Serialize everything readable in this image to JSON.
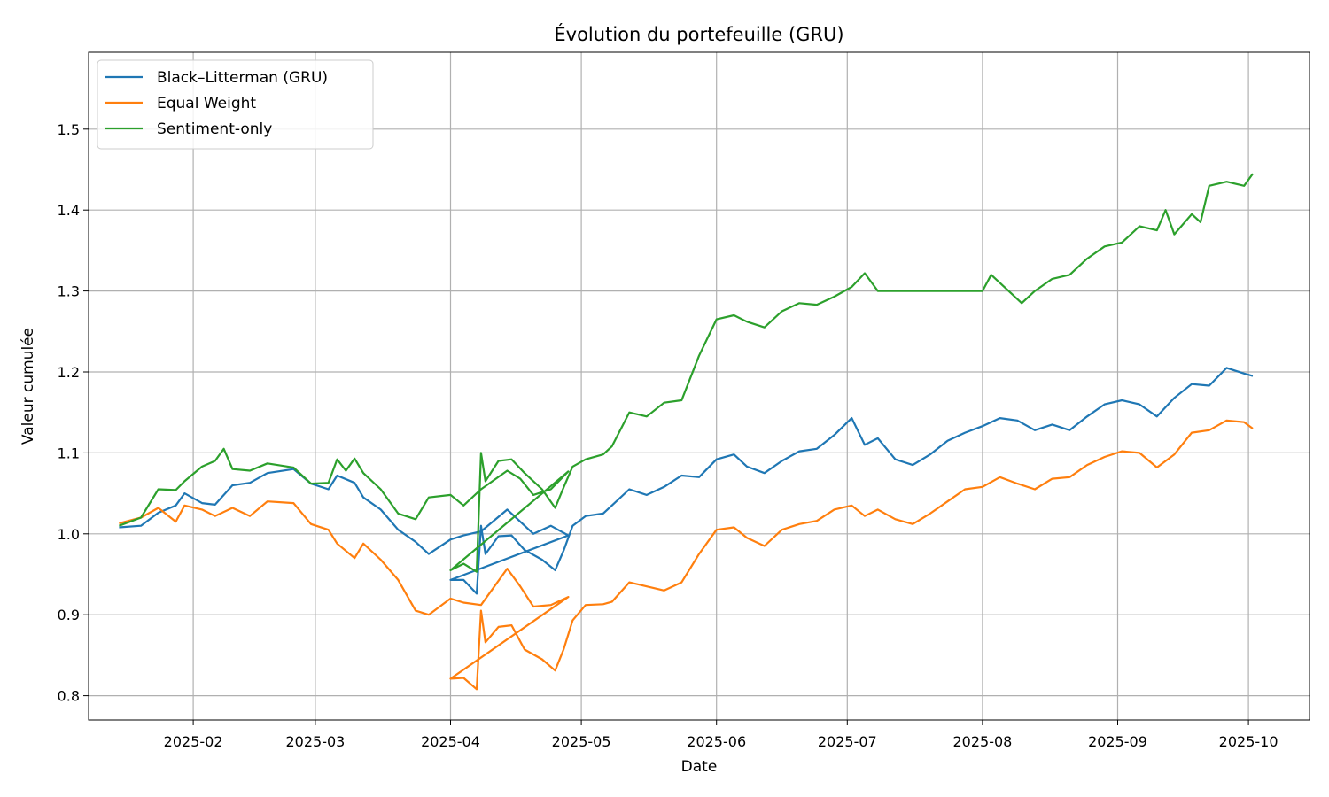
{
  "chart_data": {
    "type": "line",
    "title": "Évolution du portefeuille (GRU)",
    "xlabel": "Date",
    "ylabel": "Valeur cumulée",
    "xlim": [
      "2025-01-08",
      "2025-10-15"
    ],
    "ylim": [
      0.77,
      1.595
    ],
    "x_ticks": [
      "2025-02",
      "2025-03",
      "2025-04",
      "2025-05",
      "2025-06",
      "2025-07",
      "2025-08",
      "2025-09",
      "2025-10"
    ],
    "y_ticks": [
      "0.8",
      "0.9",
      "1.0",
      "1.1",
      "1.2",
      "1.3",
      "1.4",
      "1.5"
    ],
    "grid": true,
    "legend_position": "upper-left",
    "series": [
      {
        "name": "Black–Litterman (GRU)",
        "color": "#1f77b4",
        "points": [
          [
            "2025-01-15",
            1.008
          ],
          [
            "2025-01-20",
            1.01
          ],
          [
            "2025-01-24",
            1.026
          ],
          [
            "2025-01-28",
            1.035
          ],
          [
            "2025-01-30",
            1.05
          ],
          [
            "2025-02-03",
            1.038
          ],
          [
            "2025-02-06",
            1.036
          ],
          [
            "2025-02-10",
            1.06
          ],
          [
            "2025-02-14",
            1.063
          ],
          [
            "2025-02-18",
            1.075
          ],
          [
            "2025-02-24",
            1.08
          ],
          [
            "2025-02-28",
            1.062
          ],
          [
            "2025-03-04",
            1.055
          ],
          [
            "2025-03-06",
            1.072
          ],
          [
            "2025-03-10",
            1.063
          ],
          [
            "2025-03-12",
            1.045
          ],
          [
            "2025-03-16",
            1.03
          ],
          [
            "2025-03-20",
            1.005
          ],
          [
            "2025-03-24",
            0.99
          ],
          [
            "2025-03-27",
            0.975
          ],
          [
            "2025-04-01",
            0.993
          ],
          [
            "2025-04-04",
            0.998
          ],
          [
            "2025-04-08",
            1.003
          ],
          [
            "2025-04-14",
            1.03
          ],
          [
            "2025-04-17",
            1.015
          ],
          [
            "2025-04-20",
            1.0
          ],
          [
            "2025-04-24",
            1.01
          ],
          [
            "2025-04-28",
            0.998
          ],
          [
            "2025-04-01",
            0.943
          ],
          [
            "2025-04-04",
            0.943
          ],
          [
            "2025-04-07",
            0.926
          ],
          [
            "2025-04-08",
            1.01
          ],
          [
            "2025-04-09",
            0.975
          ],
          [
            "2025-04-12",
            0.997
          ],
          [
            "2025-04-15",
            0.998
          ],
          [
            "2025-04-18",
            0.98
          ],
          [
            "2025-04-22",
            0.968
          ],
          [
            "2025-04-25",
            0.955
          ],
          [
            "2025-04-27",
            0.98
          ],
          [
            "2025-04-29",
            1.01
          ],
          [
            "2025-05-02",
            1.022
          ],
          [
            "2025-05-06",
            1.025
          ],
          [
            "2025-05-08",
            1.035
          ],
          [
            "2025-05-12",
            1.055
          ],
          [
            "2025-05-16",
            1.048
          ],
          [
            "2025-05-20",
            1.058
          ],
          [
            "2025-05-24",
            1.072
          ],
          [
            "2025-05-28",
            1.07
          ],
          [
            "2025-06-01",
            1.092
          ],
          [
            "2025-06-05",
            1.098
          ],
          [
            "2025-06-08",
            1.083
          ],
          [
            "2025-06-12",
            1.075
          ],
          [
            "2025-06-16",
            1.09
          ],
          [
            "2025-06-20",
            1.102
          ],
          [
            "2025-06-24",
            1.105
          ],
          [
            "2025-06-28",
            1.122
          ],
          [
            "2025-07-02",
            1.143
          ],
          [
            "2025-07-05",
            1.11
          ],
          [
            "2025-07-08",
            1.118
          ],
          [
            "2025-07-12",
            1.092
          ],
          [
            "2025-07-16",
            1.085
          ],
          [
            "2025-07-20",
            1.098
          ],
          [
            "2025-07-24",
            1.115
          ],
          [
            "2025-07-28",
            1.125
          ],
          [
            "2025-08-01",
            1.133
          ],
          [
            "2025-08-05",
            1.143
          ],
          [
            "2025-08-09",
            1.14
          ],
          [
            "2025-08-13",
            1.128
          ],
          [
            "2025-08-17",
            1.135
          ],
          [
            "2025-08-21",
            1.128
          ],
          [
            "2025-08-25",
            1.145
          ],
          [
            "2025-08-29",
            1.16
          ],
          [
            "2025-09-02",
            1.165
          ],
          [
            "2025-09-06",
            1.16
          ],
          [
            "2025-09-10",
            1.145
          ],
          [
            "2025-09-14",
            1.168
          ],
          [
            "2025-09-18",
            1.185
          ],
          [
            "2025-09-22",
            1.183
          ],
          [
            "2025-09-26",
            1.205
          ],
          [
            "2025-09-30",
            1.198
          ],
          [
            "2025-10-02",
            1.195
          ]
        ]
      },
      {
        "name": "Equal Weight",
        "color": "#ff7f0e",
        "points": [
          [
            "2025-01-15",
            1.013
          ],
          [
            "2025-01-20",
            1.02
          ],
          [
            "2025-01-24",
            1.032
          ],
          [
            "2025-01-28",
            1.015
          ],
          [
            "2025-01-30",
            1.035
          ],
          [
            "2025-02-03",
            1.03
          ],
          [
            "2025-02-06",
            1.022
          ],
          [
            "2025-02-10",
            1.032
          ],
          [
            "2025-02-14",
            1.022
          ],
          [
            "2025-02-18",
            1.04
          ],
          [
            "2025-02-24",
            1.038
          ],
          [
            "2025-02-28",
            1.012
          ],
          [
            "2025-03-04",
            1.005
          ],
          [
            "2025-03-06",
            0.988
          ],
          [
            "2025-03-10",
            0.97
          ],
          [
            "2025-03-12",
            0.988
          ],
          [
            "2025-03-16",
            0.968
          ],
          [
            "2025-03-20",
            0.943
          ],
          [
            "2025-03-24",
            0.905
          ],
          [
            "2025-03-27",
            0.9
          ],
          [
            "2025-04-01",
            0.92
          ],
          [
            "2025-04-04",
            0.915
          ],
          [
            "2025-04-08",
            0.912
          ],
          [
            "2025-04-14",
            0.957
          ],
          [
            "2025-04-17",
            0.935
          ],
          [
            "2025-04-20",
            0.91
          ],
          [
            "2025-04-24",
            0.912
          ],
          [
            "2025-04-28",
            0.922
          ],
          [
            "2025-04-01",
            0.821
          ],
          [
            "2025-04-04",
            0.822
          ],
          [
            "2025-04-07",
            0.808
          ],
          [
            "2025-04-08",
            0.905
          ],
          [
            "2025-04-09",
            0.866
          ],
          [
            "2025-04-12",
            0.885
          ],
          [
            "2025-04-15",
            0.887
          ],
          [
            "2025-04-18",
            0.857
          ],
          [
            "2025-04-22",
            0.845
          ],
          [
            "2025-04-25",
            0.831
          ],
          [
            "2025-04-27",
            0.858
          ],
          [
            "2025-04-29",
            0.893
          ],
          [
            "2025-05-02",
            0.912
          ],
          [
            "2025-05-06",
            0.913
          ],
          [
            "2025-05-08",
            0.916
          ],
          [
            "2025-05-12",
            0.94
          ],
          [
            "2025-05-16",
            0.935
          ],
          [
            "2025-05-20",
            0.93
          ],
          [
            "2025-05-24",
            0.94
          ],
          [
            "2025-05-28",
            0.975
          ],
          [
            "2025-06-01",
            1.005
          ],
          [
            "2025-06-05",
            1.008
          ],
          [
            "2025-06-08",
            0.995
          ],
          [
            "2025-06-12",
            0.985
          ],
          [
            "2025-06-16",
            1.005
          ],
          [
            "2025-06-20",
            1.012
          ],
          [
            "2025-06-24",
            1.016
          ],
          [
            "2025-06-28",
            1.03
          ],
          [
            "2025-07-02",
            1.035
          ],
          [
            "2025-07-05",
            1.022
          ],
          [
            "2025-07-08",
            1.03
          ],
          [
            "2025-07-12",
            1.018
          ],
          [
            "2025-07-16",
            1.012
          ],
          [
            "2025-07-20",
            1.025
          ],
          [
            "2025-07-24",
            1.04
          ],
          [
            "2025-07-28",
            1.055
          ],
          [
            "2025-08-01",
            1.058
          ],
          [
            "2025-08-05",
            1.07
          ],
          [
            "2025-08-09",
            1.062
          ],
          [
            "2025-08-13",
            1.055
          ],
          [
            "2025-08-17",
            1.068
          ],
          [
            "2025-08-21",
            1.07
          ],
          [
            "2025-08-25",
            1.085
          ],
          [
            "2025-08-29",
            1.095
          ],
          [
            "2025-09-02",
            1.102
          ],
          [
            "2025-09-06",
            1.1
          ],
          [
            "2025-09-10",
            1.082
          ],
          [
            "2025-09-14",
            1.098
          ],
          [
            "2025-09-18",
            1.125
          ],
          [
            "2025-09-22",
            1.128
          ],
          [
            "2025-09-26",
            1.14
          ],
          [
            "2025-09-30",
            1.138
          ],
          [
            "2025-10-02",
            1.13
          ]
        ]
      },
      {
        "name": "Sentiment-only",
        "color": "#2ca02c",
        "points": [
          [
            "2025-01-15",
            1.01
          ],
          [
            "2025-01-20",
            1.02
          ],
          [
            "2025-01-24",
            1.055
          ],
          [
            "2025-01-28",
            1.054
          ],
          [
            "2025-01-30",
            1.065
          ],
          [
            "2025-02-03",
            1.083
          ],
          [
            "2025-02-06",
            1.09
          ],
          [
            "2025-02-08",
            1.105
          ],
          [
            "2025-02-10",
            1.08
          ],
          [
            "2025-02-14",
            1.078
          ],
          [
            "2025-02-18",
            1.087
          ],
          [
            "2025-02-24",
            1.082
          ],
          [
            "2025-02-28",
            1.062
          ],
          [
            "2025-03-04",
            1.063
          ],
          [
            "2025-03-06",
            1.092
          ],
          [
            "2025-03-08",
            1.078
          ],
          [
            "2025-03-10",
            1.093
          ],
          [
            "2025-03-12",
            1.075
          ],
          [
            "2025-03-16",
            1.055
          ],
          [
            "2025-03-20",
            1.025
          ],
          [
            "2025-03-24",
            1.018
          ],
          [
            "2025-03-27",
            1.045
          ],
          [
            "2025-04-01",
            1.048
          ],
          [
            "2025-04-04",
            1.035
          ],
          [
            "2025-04-08",
            1.055
          ],
          [
            "2025-04-14",
            1.078
          ],
          [
            "2025-04-17",
            1.068
          ],
          [
            "2025-04-20",
            1.048
          ],
          [
            "2025-04-24",
            1.055
          ],
          [
            "2025-04-28",
            1.077
          ],
          [
            "2025-04-01",
            0.955
          ],
          [
            "2025-04-04",
            0.963
          ],
          [
            "2025-04-07",
            0.953
          ],
          [
            "2025-04-08",
            1.1
          ],
          [
            "2025-04-09",
            1.065
          ],
          [
            "2025-04-12",
            1.09
          ],
          [
            "2025-04-15",
            1.092
          ],
          [
            "2025-04-18",
            1.075
          ],
          [
            "2025-04-22",
            1.055
          ],
          [
            "2025-04-25",
            1.032
          ],
          [
            "2025-04-27",
            1.058
          ],
          [
            "2025-04-29",
            1.083
          ],
          [
            "2025-05-02",
            1.092
          ],
          [
            "2025-05-06",
            1.098
          ],
          [
            "2025-05-08",
            1.108
          ],
          [
            "2025-05-12",
            1.15
          ],
          [
            "2025-05-16",
            1.145
          ],
          [
            "2025-05-20",
            1.162
          ],
          [
            "2025-05-24",
            1.165
          ],
          [
            "2025-05-28",
            1.22
          ],
          [
            "2025-06-01",
            1.265
          ],
          [
            "2025-06-05",
            1.27
          ],
          [
            "2025-06-08",
            1.262
          ],
          [
            "2025-06-12",
            1.255
          ],
          [
            "2025-06-16",
            1.275
          ],
          [
            "2025-06-20",
            1.285
          ],
          [
            "2025-06-24",
            1.283
          ],
          [
            "2025-06-28",
            1.293
          ],
          [
            "2025-07-02",
            1.305
          ],
          [
            "2025-07-05",
            1.322
          ],
          [
            "2025-07-08",
            1.3
          ],
          [
            "2025-07-12",
            1.3
          ],
          [
            "2025-07-16",
            1.3
          ],
          [
            "2025-07-20",
            1.3
          ],
          [
            "2025-07-24",
            1.3
          ],
          [
            "2025-07-28",
            1.3
          ],
          [
            "2025-08-01",
            1.3
          ],
          [
            "2025-08-03",
            1.32
          ],
          [
            "2025-08-07",
            1.3
          ],
          [
            "2025-08-10",
            1.285
          ],
          [
            "2025-08-13",
            1.3
          ],
          [
            "2025-08-17",
            1.315
          ],
          [
            "2025-08-21",
            1.32
          ],
          [
            "2025-08-25",
            1.34
          ],
          [
            "2025-08-29",
            1.355
          ],
          [
            "2025-09-02",
            1.36
          ],
          [
            "2025-09-06",
            1.38
          ],
          [
            "2025-09-10",
            1.375
          ],
          [
            "2025-09-12",
            1.4
          ],
          [
            "2025-09-14",
            1.37
          ],
          [
            "2025-09-18",
            1.395
          ],
          [
            "2025-09-20",
            1.385
          ],
          [
            "2025-09-22",
            1.43
          ],
          [
            "2025-09-26",
            1.435
          ],
          [
            "2025-09-30",
            1.43
          ],
          [
            "2025-10-02",
            1.445
          ]
        ]
      }
    ]
  }
}
